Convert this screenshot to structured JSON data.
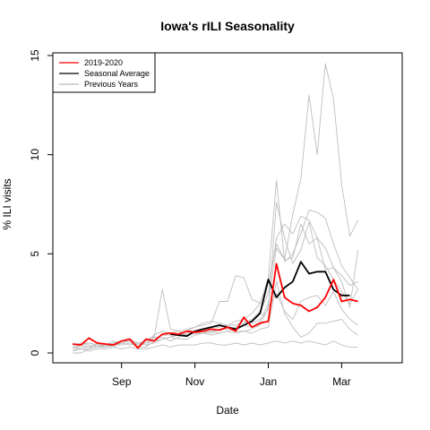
{
  "chart_data": {
    "type": "line",
    "title": "Iowa's rILI Seasonality",
    "xlabel": "Date",
    "ylabel": "% ILI visits",
    "ylim": [
      0,
      15
    ],
    "yticks": [
      0,
      5,
      10,
      15
    ],
    "xlim": [
      0,
      40
    ],
    "xticks": [
      {
        "label": "Sep",
        "week": 7
      },
      {
        "label": "Nov",
        "week": 16
      },
      {
        "label": "Jan",
        "week": 25
      },
      {
        "label": "Mar",
        "week": 34
      }
    ],
    "colors": {
      "current": "#ff0000",
      "average": "#000000",
      "previous": "#bebebe"
    },
    "legend": {
      "placement": "top-left",
      "entries": [
        {
          "label": "2019-2020",
          "color": "#ff0000"
        },
        {
          "label": "Seasonal Average",
          "color": "#000000"
        },
        {
          "label": "Previous Years",
          "color": "#bebebe"
        }
      ]
    },
    "series": [
      {
        "name": "2019-2020",
        "role": "current",
        "x0": 1,
        "values": [
          0.45,
          0.4,
          0.75,
          0.5,
          0.45,
          0.4,
          0.6,
          0.7,
          0.25,
          0.7,
          0.6,
          0.95,
          1.0,
          0.95,
          1.1,
          1.05,
          1.1,
          1.2,
          1.15,
          1.3,
          1.1,
          1.8,
          1.3,
          1.5,
          1.6,
          4.5,
          2.8,
          2.5,
          2.4,
          2.1,
          2.3,
          2.8,
          3.7,
          2.6,
          2.7,
          2.6
        ]
      },
      {
        "name": "Seasonal Average",
        "role": "average",
        "x0": 13,
        "values": [
          0.95,
          0.9,
          0.85,
          1.1,
          1.2,
          1.3,
          1.4,
          1.3,
          1.2,
          1.4,
          1.6,
          2.0,
          3.7,
          2.8,
          3.3,
          3.6,
          4.6,
          4.0,
          4.1,
          4.1,
          3.2,
          2.9,
          2.9
        ]
      },
      {
        "name": "",
        "role": "previous",
        "x0": 1,
        "values": [
          0.3,
          0.4,
          0.5,
          0.4,
          0.3,
          0.5,
          0.6,
          0.6,
          0.3,
          0.5,
          0.7,
          0.9,
          0.9,
          0.9,
          1.0,
          1.1,
          1.2,
          1.3,
          1.3,
          1.4,
          1.6,
          1.7,
          2.0,
          2.5,
          3.8,
          8.7,
          4.6,
          5.0,
          6.0,
          7.2,
          7.1,
          6.8,
          5.5,
          4.4,
          3.8,
          3.2
        ]
      },
      {
        "name": "",
        "role": "previous",
        "x0": 1,
        "values": [
          0.1,
          0.3,
          0.3,
          0.4,
          0.3,
          0.4,
          0.4,
          0.5,
          0.3,
          0.3,
          0.6,
          0.7,
          0.8,
          0.9,
          0.9,
          1.0,
          1.0,
          1.1,
          1.2,
          1.2,
          1.3,
          1.5,
          1.7,
          2.1,
          3.0,
          5.8,
          6.5,
          6.0,
          6.9,
          6.7,
          5.8,
          5.3,
          4.3,
          3.6,
          2.3,
          5.2
        ]
      },
      {
        "name": "",
        "role": "previous",
        "x0": 1,
        "values": [
          0.3,
          0.2,
          0.2,
          0.3,
          0.3,
          0.4,
          0.5,
          0.6,
          0.4,
          0.6,
          0.9,
          1.1,
          1.0,
          0.9,
          1.1,
          1.3,
          1.4,
          1.5,
          2.6,
          2.6,
          3.9,
          3.8,
          2.7,
          2.5,
          3.5,
          5.5,
          4.7,
          4.8,
          6.5,
          5.5,
          5.8,
          4.2,
          4.3,
          3.9,
          3.4,
          3.6
        ]
      },
      {
        "name": "",
        "role": "previous",
        "x0": 1,
        "values": [
          0.4,
          0.5,
          0.5,
          0.4,
          0.4,
          0.5,
          0.6,
          0.7,
          0.5,
          0.6,
          0.8,
          3.2,
          1.2,
          1.1,
          0.9,
          1.0,
          1.0,
          1.1,
          1.0,
          1.1,
          1.2,
          1.4,
          1.3,
          1.6,
          2.5,
          5.3,
          4.7,
          7.0,
          8.8,
          13.0,
          10.0,
          14.6,
          12.8,
          8.5,
          5.9,
          6.7
        ]
      },
      {
        "name": "",
        "role": "previous",
        "x0": 1,
        "values": [
          0.0,
          0.0,
          0.2,
          0.5,
          0.3,
          0.5,
          0.6,
          0.7,
          0.3,
          0.3,
          0.9,
          1.1,
          1.0,
          1.1,
          1.2,
          1.3,
          1.5,
          1.6,
          1.5,
          1.4,
          1.4,
          1.6,
          1.5,
          1.7,
          2.2,
          7.6,
          5.8,
          4.5,
          5.2,
          6.6,
          4.8,
          4.4,
          3.7,
          3.1,
          2.5,
          3.2
        ]
      },
      {
        "name": "",
        "role": "previous",
        "x0": 1,
        "values": [
          0.2,
          0.4,
          0.3,
          0.4,
          0.4,
          0.6,
          0.5,
          0.6,
          0.5,
          0.5,
          0.8,
          0.8,
          0.6,
          0.8,
          1.0,
          1.1,
          1.1,
          1.0,
          1.2,
          1.3,
          1.1,
          1.1,
          1.2,
          1.4,
          2.3,
          3.0,
          2.1,
          1.7,
          2.6,
          2.8,
          2.9,
          2.4,
          3.1,
          2.2,
          1.7,
          1.4
        ]
      },
      {
        "name": "",
        "role": "previous",
        "x0": 1,
        "values": [
          0.4,
          0.5,
          0.4,
          0.3,
          0.4,
          0.3,
          0.5,
          0.4,
          0.5,
          0.4,
          0.5,
          0.7,
          0.8,
          0.7,
          0.7,
          0.9,
          1.0,
          0.9,
          1.0,
          1.1,
          1.0,
          1.1,
          1.0,
          1.2,
          1.3,
          3.6,
          2.0,
          1.3,
          0.8,
          1.0,
          1.5,
          1.5,
          1.6,
          1.7,
          1.2,
          0.9
        ]
      },
      {
        "name": "",
        "role": "previous",
        "x0": 1,
        "values": [
          0.1,
          0.2,
          0.1,
          0.2,
          0.2,
          0.3,
          0.2,
          0.3,
          0.2,
          0.2,
          0.3,
          0.4,
          0.3,
          0.4,
          0.4,
          0.4,
          0.5,
          0.5,
          0.4,
          0.4,
          0.5,
          0.4,
          0.5,
          0.4,
          0.5,
          0.6,
          0.5,
          0.6,
          0.5,
          0.6,
          0.5,
          0.4,
          0.6,
          0.4,
          0.3,
          0.3
        ]
      }
    ]
  }
}
